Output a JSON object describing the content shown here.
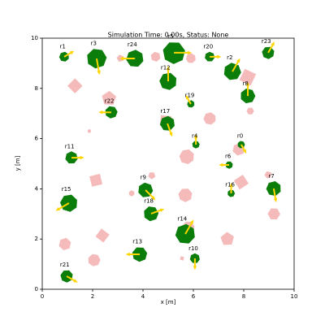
{
  "chart_data": {
    "type": "robots",
    "title": "Simulation Time: 0.00s, Status: None",
    "xlabel": "x [m]",
    "ylabel": "y [m]",
    "xlim": [
      0,
      10
    ],
    "ylim": [
      0,
      10
    ],
    "xticks": [
      0,
      2,
      4,
      6,
      8,
      10
    ],
    "yticks": [
      0,
      2,
      4,
      6,
      8,
      10
    ],
    "robot_color": "#0a7d0a",
    "arrow_color": "#ffd500",
    "obstacle_color": "#f4b4b4",
    "robots": [
      {
        "name": "r0",
        "x": 7.9,
        "y": 5.76,
        "size": 0.15,
        "heading": -60
      },
      {
        "name": "r1",
        "x": 0.87,
        "y": 9.26,
        "size": 0.2,
        "heading": 30
      },
      {
        "name": "r3",
        "x": 2.16,
        "y": 9.19,
        "size": 0.4,
        "heading": -80
      },
      {
        "name": "r24",
        "x": 3.68,
        "y": 9.19,
        "size": 0.35,
        "heading": 180
      },
      {
        "name": "r5",
        "x": 5.23,
        "y": 9.42,
        "size": 0.45,
        "heading": 0
      },
      {
        "name": "r20",
        "x": 6.65,
        "y": 9.26,
        "size": 0.2,
        "heading": 0
      },
      {
        "name": "r23",
        "x": 8.97,
        "y": 9.42,
        "size": 0.25,
        "heading": 60
      },
      {
        "name": "r2",
        "x": 7.55,
        "y": 8.67,
        "size": 0.35,
        "heading": 60
      },
      {
        "name": "r12",
        "x": 5.0,
        "y": 8.28,
        "size": 0.35,
        "heading": 90
      },
      {
        "name": "r8",
        "x": 8.16,
        "y": 7.7,
        "size": 0.3,
        "heading": 90
      },
      {
        "name": "r19",
        "x": 5.9,
        "y": 7.38,
        "size": 0.15,
        "heading": 120
      },
      {
        "name": "r22",
        "x": 2.74,
        "y": 7.05,
        "size": 0.25,
        "heading": 180
      },
      {
        "name": "r17",
        "x": 4.97,
        "y": 6.6,
        "size": 0.3,
        "heading": -70
      },
      {
        "name": "r4",
        "x": 6.1,
        "y": 5.76,
        "size": 0.15,
        "heading": 90
      },
      {
        "name": "r11",
        "x": 1.16,
        "y": 5.24,
        "size": 0.25,
        "heading": 0
      },
      {
        "name": "r6",
        "x": 7.42,
        "y": 4.95,
        "size": 0.15,
        "heading": 180
      },
      {
        "name": "r9",
        "x": 4.1,
        "y": 3.95,
        "size": 0.3,
        "heading": -45
      },
      {
        "name": "r15",
        "x": 1.06,
        "y": 3.43,
        "size": 0.35,
        "heading": -150
      },
      {
        "name": "r16",
        "x": 7.5,
        "y": 3.82,
        "size": 0.15,
        "heading": 90
      },
      {
        "name": "r7",
        "x": 9.19,
        "y": 4.01,
        "size": 0.3,
        "heading": -80
      },
      {
        "name": "r18",
        "x": 4.32,
        "y": 3.01,
        "size": 0.3,
        "heading": 20
      },
      {
        "name": "r14",
        "x": 5.68,
        "y": 2.2,
        "size": 0.4,
        "heading": 60
      },
      {
        "name": "r13",
        "x": 3.87,
        "y": 1.39,
        "size": 0.3,
        "heading": 180
      },
      {
        "name": "r10",
        "x": 6.06,
        "y": 1.23,
        "size": 0.2,
        "heading": -90
      },
      {
        "name": "r21",
        "x": 0.97,
        "y": 0.52,
        "size": 0.25,
        "heading": -30
      }
    ],
    "obstacles": [
      {
        "x": 1.3,
        "y": 8.1,
        "size": 0.3
      },
      {
        "x": 3.1,
        "y": 9.2,
        "size": 0.15
      },
      {
        "x": 4.5,
        "y": 9.26,
        "size": 0.2
      },
      {
        "x": 5.9,
        "y": 9.2,
        "size": 0.2
      },
      {
        "x": 8.16,
        "y": 8.45,
        "size": 0.35
      },
      {
        "x": 2.65,
        "y": 7.6,
        "size": 0.3
      },
      {
        "x": 8.26,
        "y": 7.1,
        "size": 0.15
      },
      {
        "x": 6.65,
        "y": 6.8,
        "size": 0.25
      },
      {
        "x": 4.9,
        "y": 6.7,
        "size": 0.3
      },
      {
        "x": 1.87,
        "y": 6.3,
        "size": 0.08
      },
      {
        "x": 7.8,
        "y": 5.57,
        "size": 0.25
      },
      {
        "x": 5.74,
        "y": 5.28,
        "size": 0.3
      },
      {
        "x": 2.13,
        "y": 4.34,
        "size": 0.3
      },
      {
        "x": 4.35,
        "y": 4.53,
        "size": 0.15
      },
      {
        "x": 3.55,
        "y": 3.82,
        "size": 0.12
      },
      {
        "x": 5.68,
        "y": 3.75,
        "size": 0.28
      },
      {
        "x": 7.9,
        "y": 4.27,
        "size": 0.3
      },
      {
        "x": 8.97,
        "y": 4.56,
        "size": 0.15
      },
      {
        "x": 9.2,
        "y": 3.0,
        "size": 0.25
      },
      {
        "x": 5.8,
        "y": 2.46,
        "size": 0.25
      },
      {
        "x": 2.39,
        "y": 2.14,
        "size": 0.28
      },
      {
        "x": 7.35,
        "y": 2.0,
        "size": 0.28
      },
      {
        "x": 0.9,
        "y": 1.8,
        "size": 0.25
      },
      {
        "x": 2.06,
        "y": 1.16,
        "size": 0.25
      },
      {
        "x": 5.55,
        "y": 1.23,
        "size": 0.1
      }
    ]
  }
}
